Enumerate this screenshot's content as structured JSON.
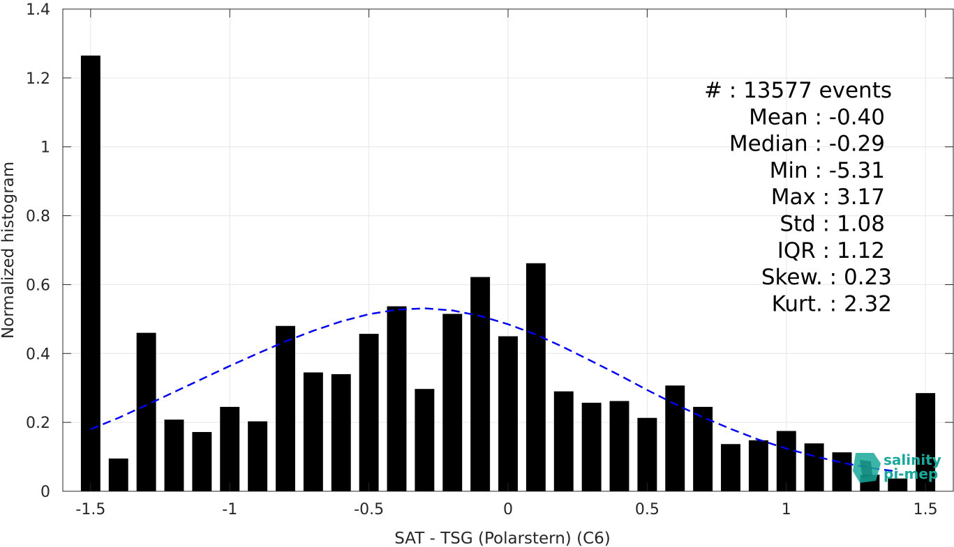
{
  "chart_data": {
    "type": "bar",
    "xlabel": "SAT - TSG (Polarstern) (C6)",
    "ylabel": "Normalized histogram",
    "xlim": [
      -1.6,
      1.6
    ],
    "ylim": [
      0,
      1.4
    ],
    "xticks": [
      -1.5,
      -1,
      -0.5,
      0,
      0.5,
      1,
      1.5
    ],
    "xtick_labels": [
      "-1.5",
      "-1",
      "-0.5",
      "0",
      "0.5",
      "1",
      "1.5"
    ],
    "yticks": [
      0,
      0.2,
      0.4,
      0.6,
      0.8,
      1,
      1.2,
      1.4
    ],
    "ytick_labels": [
      "0",
      "0.2",
      "0.4",
      "0.6",
      "0.8",
      "1",
      "1.2",
      "1.4"
    ],
    "grid": true,
    "bar_color": "#000000",
    "fit_color": "#0000ee",
    "bins": [
      -1.5,
      -1.4,
      -1.3,
      -1.2,
      -1.1,
      -1.0,
      -0.9,
      -0.8,
      -0.7,
      -0.6,
      -0.5,
      -0.4,
      -0.3,
      -0.2,
      -0.1,
      0.0,
      0.1,
      0.2,
      0.3,
      0.4,
      0.5,
      0.6,
      0.7,
      0.8,
      0.9,
      1.0,
      1.1,
      1.2,
      1.3,
      1.4,
      1.5
    ],
    "values": [
      1.265,
      0.095,
      0.46,
      0.208,
      0.172,
      0.245,
      0.203,
      0.48,
      0.345,
      0.34,
      0.457,
      0.537,
      0.297,
      0.515,
      0.622,
      0.45,
      0.662,
      0.29,
      0.257,
      0.262,
      0.213,
      0.307,
      0.245,
      0.137,
      0.148,
      0.175,
      0.139,
      0.113,
      0.048,
      0.037,
      0.285
    ],
    "fit": {
      "type": "gaussian",
      "style": "dashed",
      "x": [
        -1.5,
        -1.4,
        -1.3,
        -1.2,
        -1.1,
        -1.0,
        -0.9,
        -0.8,
        -0.7,
        -0.6,
        -0.5,
        -0.4,
        -0.3,
        -0.2,
        -0.1,
        0.0,
        0.1,
        0.2,
        0.3,
        0.4,
        0.5,
        0.6,
        0.7,
        0.8,
        0.9,
        1.0,
        1.1,
        1.2,
        1.3,
        1.4
      ],
      "y": [
        0.18,
        0.213,
        0.25,
        0.288,
        0.326,
        0.364,
        0.4,
        0.435,
        0.466,
        0.493,
        0.514,
        0.527,
        0.531,
        0.525,
        0.509,
        0.485,
        0.455,
        0.418,
        0.378,
        0.337,
        0.294,
        0.253,
        0.215,
        0.181,
        0.15,
        0.124,
        0.102,
        0.083,
        0.068,
        0.057
      ]
    },
    "annotations": [
      "#  : 13577 events",
      "Mean : -0.40",
      "Median : -0.29",
      "Min : -5.31",
      "Max : 3.17",
      "Std : 1.08",
      "IQR : 1.12",
      "Skew. : 0.23",
      "Kurt. : 2.32"
    ]
  },
  "logo": {
    "line1": "salinity",
    "line2": "pi-mep",
    "color": "#1aa89a"
  }
}
